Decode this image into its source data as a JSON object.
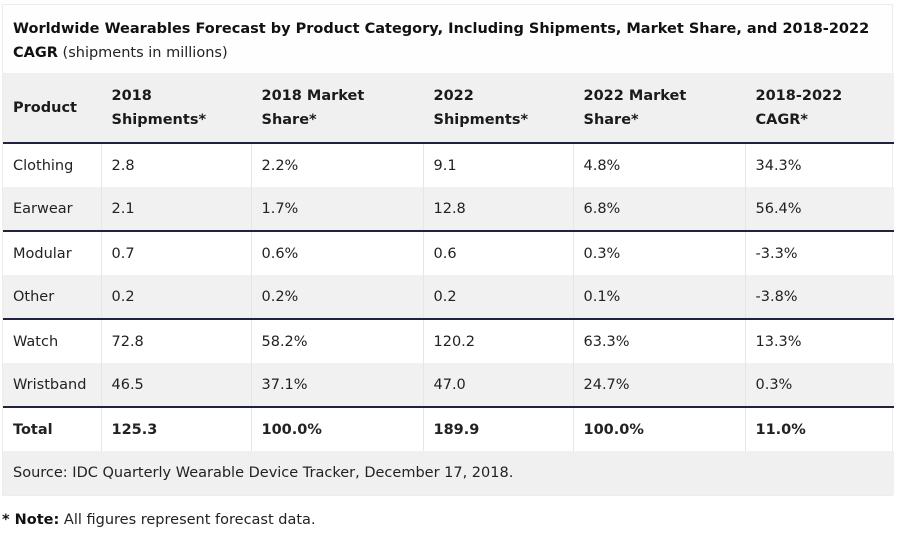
{
  "caption": {
    "title_bold": "Worldwide Wearables Forecast by Product Category, Including Shipments, Market Share, and 2018-2022 CAGR",
    "title_normal": " (shipments in millions)"
  },
  "table": {
    "headers": [
      {
        "line1": "Product",
        "line2": ""
      },
      {
        "line1": "2018",
        "line2": "Shipments*"
      },
      {
        "line1": "2018 Market",
        "line2": "Share*"
      },
      {
        "line1": "2022",
        "line2": "Shipments*"
      },
      {
        "line1": "2022 Market",
        "line2": "Share*"
      },
      {
        "line1": "2018-2022",
        "line2": "CAGR*"
      }
    ],
    "rows": [
      [
        "Clothing",
        "2.8",
        "2.2%",
        "9.1",
        "4.8%",
        "34.3%"
      ],
      [
        "Earwear",
        "2.1",
        "1.7%",
        "12.8",
        "6.8%",
        "56.4%"
      ],
      [
        "Modular",
        "0.7",
        "0.6%",
        "0.6",
        "0.3%",
        "-3.3%"
      ],
      [
        "Other",
        "0.2",
        "0.2%",
        "0.2",
        "0.1%",
        "-3.8%"
      ],
      [
        "Watch",
        "72.8",
        "58.2%",
        "120.2",
        "63.3%",
        "13.3%"
      ],
      [
        "Wristband",
        "46.5",
        "37.1%",
        "47.0",
        "24.7%",
        "0.3%"
      ]
    ],
    "total": [
      "Total",
      "125.3",
      "100.0%",
      "189.9",
      "100.0%",
      "11.0%"
    ],
    "source": "Source: IDC Quarterly Wearable Device Tracker, December 17, 2018."
  },
  "note": {
    "label": "* Note:",
    "text": " All figures represent forecast data."
  },
  "colors": {
    "header_bg": "#f0f0f0",
    "alt_row_bg": "#f1f1f1",
    "separator": "#1f2340",
    "text": "#222222"
  }
}
